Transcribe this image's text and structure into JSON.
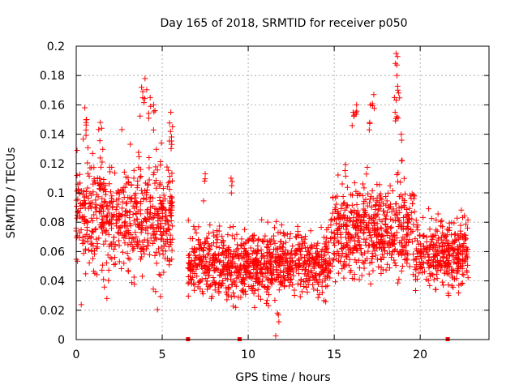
{
  "chart_data": {
    "type": "scatter",
    "title": "Day 165 of 2018, SRMTID for receiver p050",
    "xlabel": "GPS time / hours",
    "ylabel": "SRMTID / TECUs",
    "xlim": [
      0,
      24
    ],
    "ylim": [
      0,
      0.2
    ],
    "x_ticks": [
      0,
      5,
      10,
      15,
      20
    ],
    "x_tick_labels": [
      "0",
      "5",
      "10",
      "15",
      "20"
    ],
    "y_ticks": [
      0,
      0.02,
      0.04,
      0.06,
      0.08,
      0.1,
      0.12,
      0.14,
      0.16,
      0.18,
      0.2
    ],
    "y_tick_labels": [
      "0",
      "0.02",
      "0.04",
      "0.06",
      "0.08",
      "0.1",
      "0.12",
      "0.14",
      "0.16",
      "0.18",
      "0.2"
    ],
    "grid": true,
    "marker": "+",
    "color": "#ff0000",
    "segments": [
      {
        "t_start": 0.0,
        "t_end": 5.6,
        "center": 0.082,
        "spread": 0.022
      },
      {
        "t_start": 6.5,
        "t_end": 10.0,
        "center": 0.052,
        "spread": 0.013
      },
      {
        "t_start": 10.0,
        "t_end": 14.8,
        "center": 0.052,
        "spread": 0.012
      },
      {
        "t_start": 14.8,
        "t_end": 19.7,
        "center": 0.075,
        "spread": 0.018
      },
      {
        "t_start": 19.7,
        "t_end": 22.8,
        "center": 0.058,
        "spread": 0.013
      }
    ],
    "points_per_hour": 110,
    "peaks": [
      {
        "x": 4.0,
        "y": 0.178
      },
      {
        "x": 4.3,
        "y": 0.165
      },
      {
        "x": 4.5,
        "y": 0.16
      },
      {
        "x": 3.8,
        "y": 0.172
      },
      {
        "x": 0.5,
        "y": 0.158
      },
      {
        "x": 0.6,
        "y": 0.15
      },
      {
        "x": 1.4,
        "y": 0.148
      },
      {
        "x": 5.5,
        "y": 0.155
      },
      {
        "x": 5.6,
        "y": 0.145
      },
      {
        "x": 16.1,
        "y": 0.155
      },
      {
        "x": 16.3,
        "y": 0.16
      },
      {
        "x": 17.1,
        "y": 0.16
      },
      {
        "x": 17.3,
        "y": 0.167
      },
      {
        "x": 18.6,
        "y": 0.195
      },
      {
        "x": 18.65,
        "y": 0.18
      },
      {
        "x": 18.5,
        "y": 0.165
      },
      {
        "x": 18.7,
        "y": 0.17
      },
      {
        "x": 18.9,
        "y": 0.14
      },
      {
        "x": 11.7,
        "y": 0.018
      },
      {
        "x": 7.5,
        "y": 0.113
      },
      {
        "x": 9.0,
        "y": 0.11
      }
    ],
    "gap_markers": [
      6.5,
      9.5,
      21.6
    ]
  }
}
